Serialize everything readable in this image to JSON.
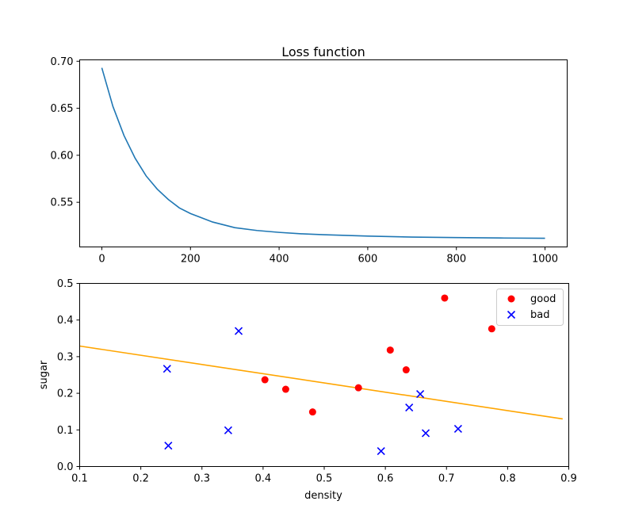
{
  "chart_data": [
    {
      "type": "line",
      "title": "Loss function",
      "xlabel": "",
      "ylabel": "",
      "xlim": [
        -50,
        1050
      ],
      "ylim": [
        0.5025,
        0.7015
      ],
      "xticks": [
        0,
        200,
        400,
        600,
        800,
        1000
      ],
      "xtick_labels": [
        "0",
        "200",
        "400",
        "600",
        "800",
        "1000"
      ],
      "yticks": [
        0.55,
        0.6,
        0.65,
        0.7
      ],
      "ytick_labels": [
        "0.55",
        "0.60",
        "0.65",
        "0.70"
      ],
      "grid": false,
      "colors": {
        "line": "#1f77b4"
      },
      "series": [
        {
          "x": [
            0,
            25,
            50,
            75,
            100,
            125,
            150,
            175,
            200,
            250,
            300,
            350,
            400,
            450,
            500,
            600,
            700,
            800,
            900,
            1000
          ],
          "y": [
            0.693,
            0.652,
            0.621,
            0.597,
            0.578,
            0.564,
            0.553,
            0.544,
            0.538,
            0.529,
            0.523,
            0.52,
            0.518,
            0.5165,
            0.5155,
            0.514,
            0.513,
            0.5125,
            0.512,
            0.5117
          ]
        }
      ]
    },
    {
      "type": "scatter",
      "title": "",
      "xlabel": "density",
      "ylabel": "sugar",
      "xlim": [
        0.1,
        0.9
      ],
      "ylim": [
        0.0,
        0.5
      ],
      "xticks": [
        0.1,
        0.2,
        0.3,
        0.4,
        0.5,
        0.6,
        0.7,
        0.8,
        0.9
      ],
      "xtick_labels": [
        "0.1",
        "0.2",
        "0.3",
        "0.4",
        "0.5",
        "0.6",
        "0.7",
        "0.8",
        "0.9"
      ],
      "yticks": [
        0.0,
        0.1,
        0.2,
        0.3,
        0.4,
        0.5
      ],
      "ytick_labels": [
        "0.0",
        "0.1",
        "0.2",
        "0.3",
        "0.4",
        "0.5"
      ],
      "grid": false,
      "legend_position": "top-right",
      "series": [
        {
          "name": "good",
          "marker": "circle",
          "color": "#ff0000",
          "x": [
            0.697,
            0.774,
            0.634,
            0.608,
            0.556,
            0.403,
            0.481,
            0.437
          ],
          "y": [
            0.46,
            0.376,
            0.264,
            0.318,
            0.215,
            0.237,
            0.149,
            0.211
          ]
        },
        {
          "name": "bad",
          "marker": "x",
          "color": "#0000ff",
          "x": [
            0.666,
            0.243,
            0.245,
            0.343,
            0.639,
            0.657,
            0.36,
            0.593,
            0.719
          ],
          "y": [
            0.091,
            0.267,
            0.057,
            0.099,
            0.161,
            0.198,
            0.37,
            0.042,
            0.103
          ]
        }
      ],
      "decision_line": {
        "color": "#ffa500",
        "x": [
          0.1,
          0.89
        ],
        "y": [
          0.329,
          0.13
        ]
      }
    }
  ]
}
